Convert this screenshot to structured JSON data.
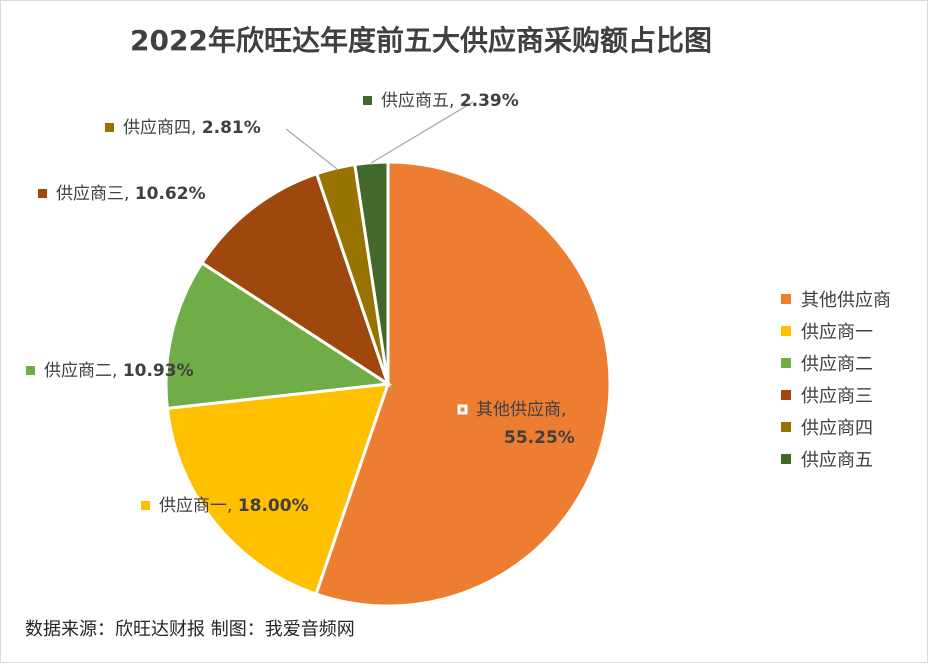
{
  "chart_data": {
    "type": "pie",
    "title": "2022年欣旺达年度前五大供应商采购额占比图",
    "slices": [
      {
        "name": "其他供应商",
        "value": 55.25,
        "pct_label": "55.25%",
        "color": "#ED7D31"
      },
      {
        "name": "供应商一",
        "value": 18.0,
        "pct_label": "18.00%",
        "color": "#FFC000"
      },
      {
        "name": "供应商二",
        "value": 10.93,
        "pct_label": "10.93%",
        "color": "#70AD47"
      },
      {
        "name": "供应商三",
        "value": 10.62,
        "pct_label": "10.62%",
        "color": "#9E480E"
      },
      {
        "name": "供应商四",
        "value": 2.81,
        "pct_label": "2.81%",
        "color": "#997300"
      },
      {
        "name": "供应商五",
        "value": 2.39,
        "pct_label": "2.39%",
        "color": "#43682B"
      }
    ],
    "legend_position": "right"
  },
  "source_note": "数据来源：欣旺达财报  制图：我爱音频网"
}
